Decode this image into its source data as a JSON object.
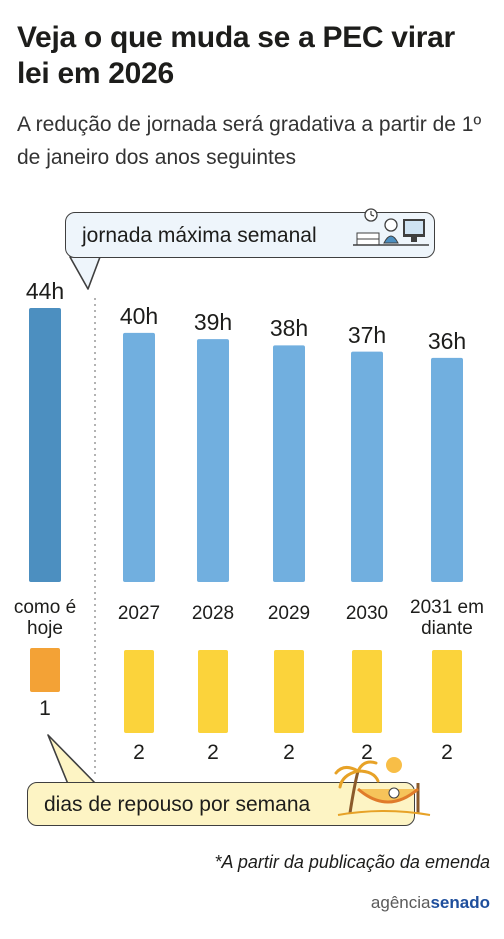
{
  "title": "Veja o que muda se a PEC virar lei em 2026",
  "subtitle": "A redução de jornada será gradativa a partir de 1º de janeiro dos anos seguintes",
  "hours_label": "jornada máxima semanal",
  "rest_label": "dias de repouso por semana",
  "footnote": "*A partir da publicação da emenda",
  "logo": {
    "part1": "agência",
    "part2": "senado"
  },
  "colors": {
    "current_hours": "#4c8fc0",
    "future_hours": "#71afdf",
    "current_rest": "#f3a236",
    "future_rest": "#fbd33b"
  },
  "chart_data": [
    {
      "type": "bar",
      "title": "jornada máxima semanal",
      "categories": [
        "como é hoje",
        "2027",
        "2028",
        "2029",
        "2030",
        "2031 em diante"
      ],
      "values": [
        44,
        40,
        39,
        38,
        37,
        36
      ],
      "value_labels": [
        "44h",
        "40h",
        "39h",
        "38h",
        "37h",
        "36h"
      ],
      "unit": "h"
    },
    {
      "type": "bar",
      "title": "dias de repouso por semana",
      "categories": [
        "como é hoje",
        "2027",
        "2028",
        "2029",
        "2030",
        "2031 em diante"
      ],
      "values": [
        1,
        2,
        2,
        2,
        2,
        2
      ],
      "value_labels": [
        "1",
        "2",
        "2",
        "2",
        "2",
        "2"
      ]
    }
  ]
}
